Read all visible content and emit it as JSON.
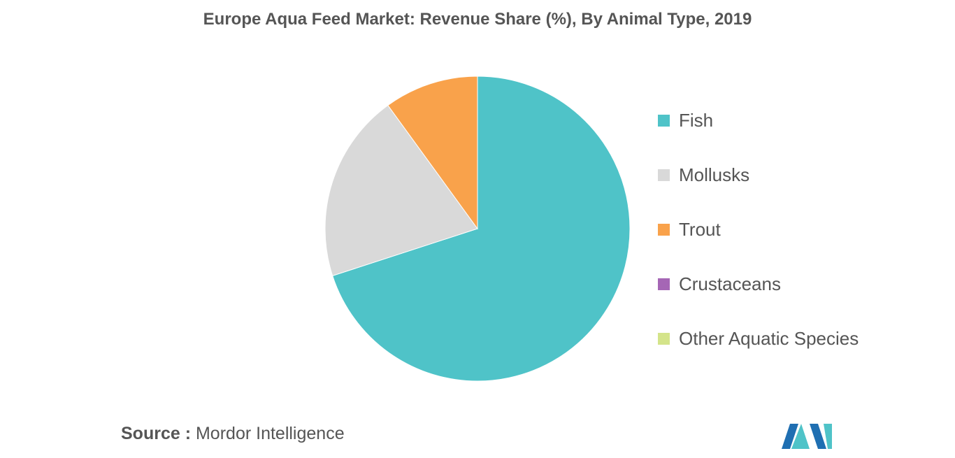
{
  "chart_data": {
    "type": "pie",
    "title": "Europe Aqua Feed Market: Revenue Share (%), By Animal Type, 2019",
    "slices": [
      {
        "label": "Fish",
        "value": 70.0,
        "color": "#4fc3c8"
      },
      {
        "label": "Mollusks",
        "value": 20.0,
        "color": "#d9d9d9"
      },
      {
        "label": "Trout",
        "value": 10.0,
        "color": "#f9a24b"
      },
      {
        "label": "Crustaceans",
        "value": 0,
        "color": "#a566b5"
      },
      {
        "label": "Other Aquatic Species",
        "value": 0,
        "color": "#d4e48a"
      }
    ],
    "legend_position": "right"
  },
  "source": {
    "label": "Source :",
    "text": "Mordor Intelligence"
  },
  "logo": {
    "icon": "mordor-intelligence-logo-icon",
    "colors": [
      "#1f6fb2",
      "#4fc3c8"
    ]
  }
}
